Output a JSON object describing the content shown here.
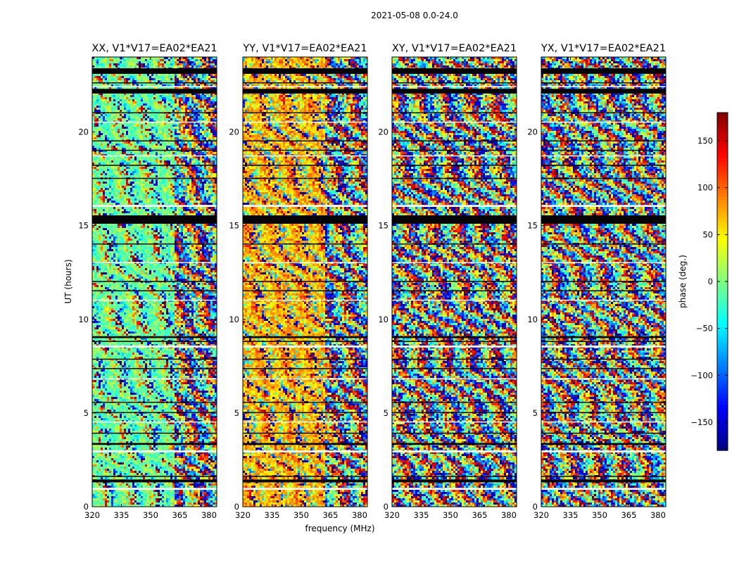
{
  "chart_data": {
    "type": "heatmap",
    "suptitle": "2021-05-08 0.0-24.0",
    "xlabel": "frequency (MHz)",
    "ylabel": "UT (hours)",
    "xlim": [
      320,
      384
    ],
    "ylim": [
      0,
      24
    ],
    "xticks": [
      320,
      335,
      350,
      365,
      380
    ],
    "yticks": [
      0,
      5,
      10,
      15,
      20
    ],
    "panels": [
      {
        "title": "XX, V1*V17=EA02*EA21",
        "polarization": "XX",
        "base_phase": -25
      },
      {
        "title": "YY, V1*V17=EA02*EA21",
        "polarization": "YY",
        "base_phase": 55
      },
      {
        "title": "XY, V1*V17=EA02*EA21",
        "polarization": "XY",
        "base_phase": null
      },
      {
        "title": "YX, V1*V17=EA02*EA21",
        "polarization": "YX",
        "base_phase": null
      }
    ],
    "flagged_time_ranges_h": [
      [
        0.9,
        1.0
      ],
      [
        1.3,
        1.45
      ],
      [
        1.6,
        1.65
      ],
      [
        2.9,
        3.0
      ],
      [
        3.3,
        3.4
      ],
      [
        3.9,
        3.95
      ],
      [
        4.5,
        4.55
      ],
      [
        5.0,
        5.05
      ],
      [
        5.55,
        5.6
      ],
      [
        6.8,
        6.85
      ],
      [
        7.35,
        7.4
      ],
      [
        7.85,
        7.9
      ],
      [
        8.5,
        8.6
      ],
      [
        8.8,
        8.85
      ],
      [
        9.0,
        9.1
      ],
      [
        11.0,
        11.05
      ],
      [
        11.5,
        11.55
      ],
      [
        12.0,
        12.05
      ],
      [
        13.0,
        13.05
      ],
      [
        14.0,
        14.05
      ],
      [
        15.1,
        15.55
      ],
      [
        16.0,
        16.1
      ],
      [
        17.5,
        17.55
      ],
      [
        18.2,
        18.25
      ],
      [
        18.7,
        18.75
      ],
      [
        19.0,
        19.05
      ],
      [
        19.5,
        19.55
      ],
      [
        20.5,
        20.55
      ],
      [
        21.0,
        21.05
      ],
      [
        22.05,
        22.3
      ],
      [
        22.4,
        22.45
      ],
      [
        22.6,
        22.65
      ],
      [
        23.1,
        23.4
      ]
    ],
    "colorbar": {
      "label": "phase (deg.)",
      "range": [
        -180,
        180
      ],
      "ticks": [
        -150,
        -100,
        -50,
        0,
        50,
        100,
        150
      ],
      "tick_labels": [
        "−150",
        "−100",
        "−50",
        "0",
        "50",
        "100",
        "150"
      ],
      "colormap": "jet"
    }
  }
}
